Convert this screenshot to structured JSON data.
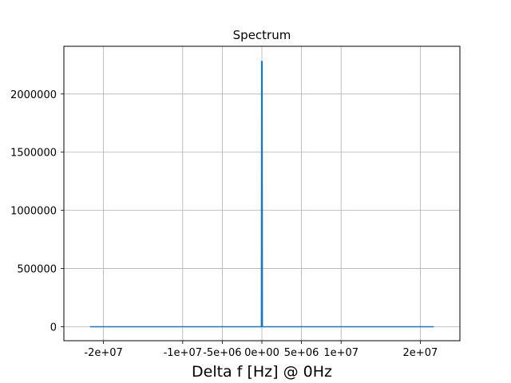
{
  "chart_data": {
    "type": "line",
    "title": "Spectrum",
    "xlabel": "Delta f [Hz] @ 0Hz",
    "ylabel": "",
    "xlim": [
      -25000000,
      25000000
    ],
    "ylim": [
      -120000,
      2410000
    ],
    "grid": true,
    "x_ticks": [
      {
        "value": -20000000,
        "label": "-2e+07"
      },
      {
        "value": -10000000,
        "label": "-1e+07"
      },
      {
        "value": -5000000,
        "label": "-5e+06"
      },
      {
        "value": 0,
        "label": "0e+00"
      },
      {
        "value": 5000000,
        "label": "5e+06"
      },
      {
        "value": 10000000,
        "label": "1e+07"
      },
      {
        "value": 20000000,
        "label": "2e+07"
      }
    ],
    "y_ticks": [
      {
        "value": 0,
        "label": "0"
      },
      {
        "value": 500000,
        "label": "500000"
      },
      {
        "value": 1000000,
        "label": "1000000"
      },
      {
        "value": 1500000,
        "label": "1500000"
      },
      {
        "value": 2000000,
        "label": "2000000"
      }
    ],
    "series": [
      {
        "color": "#1f77b4",
        "points": [
          [
            -21700000,
            0
          ],
          [
            -60000,
            0
          ],
          [
            -30000,
            2280000
          ],
          [
            30000,
            2280000
          ],
          [
            60000,
            0
          ],
          [
            21700000,
            0
          ]
        ]
      }
    ]
  }
}
